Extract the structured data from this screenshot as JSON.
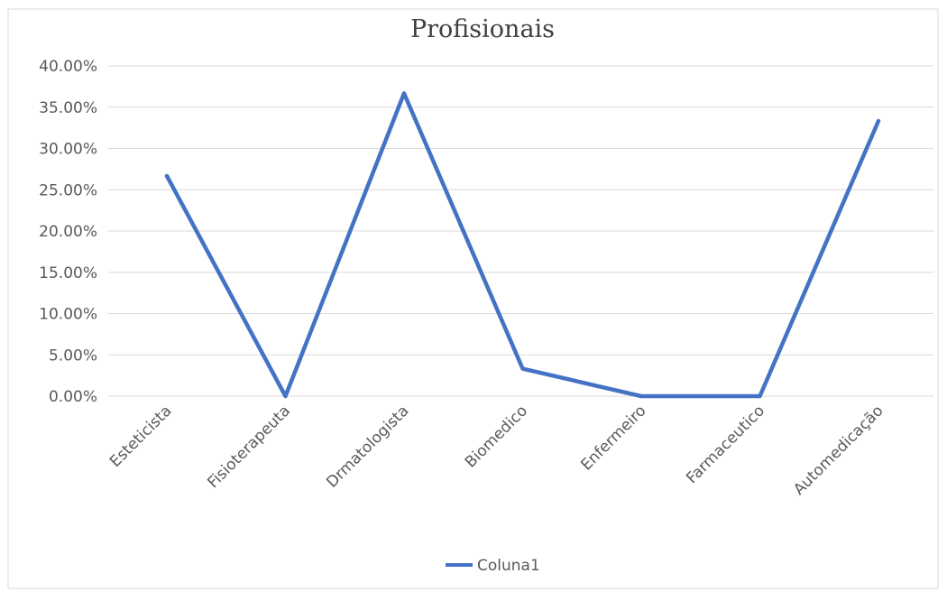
{
  "colors": {
    "series": "#4472C4",
    "grid": "#D9D9D9",
    "border": "#D9D9D9",
    "text": "#595959"
  },
  "chart_data": {
    "type": "line",
    "title": "Profisionais",
    "xlabel": "",
    "ylabel": "",
    "categories": [
      "Esteticista",
      "Fisioterapeuta",
      "Drmatologista",
      "Biomedico",
      "Enfermeiro",
      "Farmaceutico",
      "Automedicação"
    ],
    "series": [
      {
        "name": "Coluna1",
        "values": [
          0.2667,
          0.0,
          0.3667,
          0.0333,
          0.0,
          0.0,
          0.3333
        ]
      }
    ],
    "ylim": [
      0,
      0.4
    ],
    "y_ticks": [
      "0.00%",
      "5.00%",
      "10.00%",
      "15.00%",
      "20.00%",
      "25.00%",
      "30.00%",
      "35.00%",
      "40.00%"
    ],
    "grid": true,
    "legend_position": "bottom"
  }
}
